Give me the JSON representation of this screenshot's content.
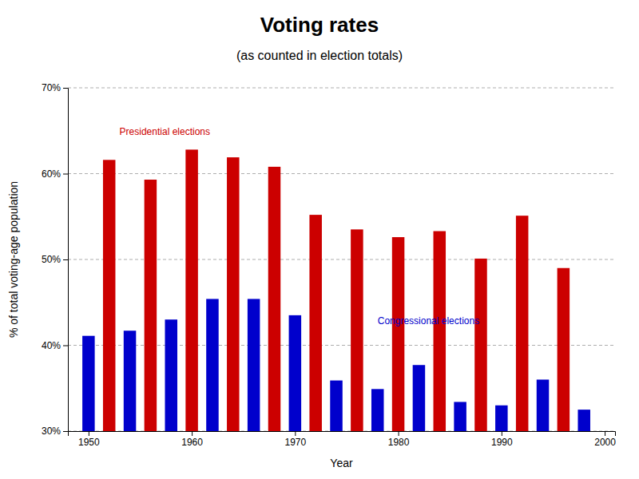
{
  "chart_data": {
    "type": "bar",
    "title": "Voting rates",
    "subtitle": "(as counted in election totals)",
    "xlabel": "Year",
    "ylabel": "% of total voting-age population",
    "x": [
      1950,
      1952,
      1954,
      1956,
      1958,
      1960,
      1962,
      1964,
      1966,
      1968,
      1970,
      1972,
      1974,
      1976,
      1978,
      1980,
      1982,
      1984,
      1986,
      1988,
      1990,
      1992,
      1994,
      1996,
      1998
    ],
    "values": [
      41.1,
      61.6,
      41.7,
      59.3,
      43.0,
      62.8,
      45.4,
      61.9,
      45.4,
      60.8,
      43.5,
      55.2,
      35.9,
      53.5,
      34.9,
      52.6,
      37.7,
      53.3,
      33.4,
      50.1,
      33.0,
      55.1,
      36.0,
      49.0,
      32.5
    ],
    "colors": [
      "#0000cc",
      "#cc0000",
      "#0000cc",
      "#cc0000",
      "#0000cc",
      "#cc0000",
      "#0000cc",
      "#cc0000",
      "#0000cc",
      "#cc0000",
      "#0000cc",
      "#cc0000",
      "#0000cc",
      "#cc0000",
      "#0000cc",
      "#cc0000",
      "#0000cc",
      "#cc0000",
      "#0000cc",
      "#cc0000",
      "#0000cc",
      "#cc0000",
      "#0000cc",
      "#cc0000",
      "#0000cc"
    ],
    "xlim": [
      1948,
      2001
    ],
    "xticks": [
      1950,
      1960,
      1970,
      1980,
      1990,
      2000
    ],
    "ylim": [
      30,
      70
    ],
    "yticks": [
      {
        "value": 30,
        "label": "30%"
      },
      {
        "value": 40,
        "label": "40%"
      },
      {
        "value": 50,
        "label": "50%"
      },
      {
        "value": 60,
        "label": "60%"
      },
      {
        "value": 70,
        "label": "70%"
      }
    ],
    "grid": true,
    "annotations": [
      {
        "text": "Presidential elections",
        "x": 1953,
        "y": 64.5,
        "color": "#cc0000"
      },
      {
        "text": "Congressional  elections",
        "x": 1978,
        "y": 42.5,
        "color": "#0000cc"
      }
    ]
  }
}
